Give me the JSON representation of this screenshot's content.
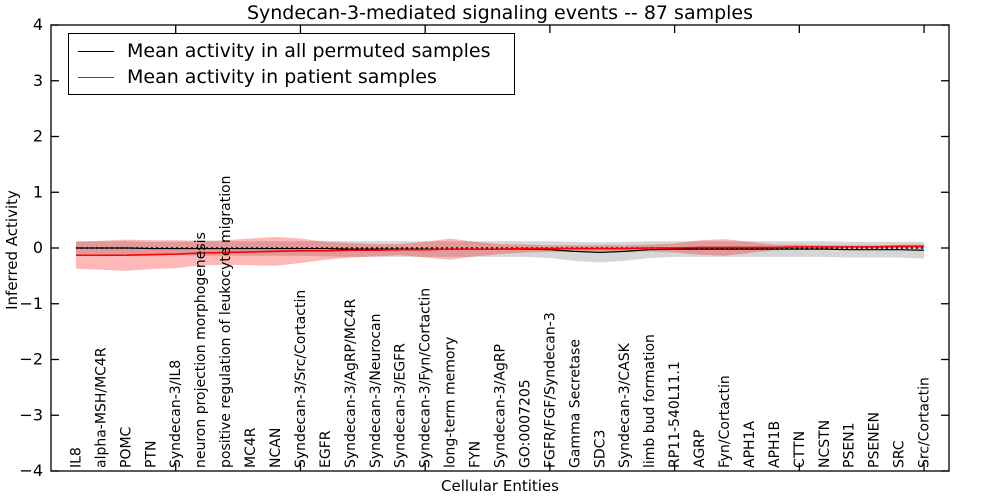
{
  "title": "Syndecan-3-mediated signaling events -- 87 samples",
  "legend": {
    "items": [
      {
        "label": "Mean activity in all permuted samples",
        "color": "#000000"
      },
      {
        "label": "Mean activity in patient samples",
        "color": "#ff0000"
      }
    ]
  },
  "chart_data": {
    "type": "line",
    "title": "Syndecan-3-mediated signaling events -- 87 samples",
    "xlabel": "Cellular Entities",
    "ylabel": "Inferred Activity",
    "ylim": [
      -4,
      4
    ],
    "yticks": [
      -4,
      -3,
      -2,
      -1,
      0,
      1,
      2,
      3,
      4
    ],
    "x_major_tick_step": 5,
    "grid": false,
    "legend_position": "upper left",
    "zero_line": true,
    "categories": [
      "IL8",
      "alpha-MSH/MC4R",
      "POMC",
      "PTN",
      "Syndecan-3/IL8",
      "neuron projection morphogenesis",
      "positive regulation of leukocyte migration",
      "MC4R",
      "NCAN",
      "Syndecan-3/Src/Cortactin",
      "EGFR",
      "Syndecan-3/AgRP/MC4R",
      "Syndecan-3/Neurocan",
      "Syndecan-3/EGFR",
      "Syndecan-3/Fyn/Cortactin",
      "long-term memory",
      "FYN",
      "Syndecan-3/AgRP",
      "GO:0007205",
      "FGFR/FGF/Syndecan-3",
      "Gamma Secretase",
      "SDC3",
      "Syndecan-3/CASK",
      "limb bud formation",
      "RP11-540L11.1",
      "AGRP",
      "Fyn/Cortactin",
      "APH1A",
      "APH1B",
      "CTTN",
      "NCSTN",
      "PSEN1",
      "PSENEN",
      "SRC",
      "Src/Cortactin"
    ],
    "series": [
      {
        "name": "Mean activity in all permuted samples",
        "color": "#000000",
        "line_width": 1.2,
        "values": [
          0.0,
          0.0,
          0.0,
          -0.01,
          -0.01,
          -0.01,
          -0.01,
          -0.01,
          -0.01,
          -0.01,
          -0.01,
          -0.02,
          -0.02,
          -0.02,
          -0.02,
          -0.02,
          -0.02,
          -0.02,
          -0.02,
          -0.03,
          -0.06,
          -0.08,
          -0.06,
          -0.03,
          -0.02,
          -0.02,
          -0.02,
          -0.02,
          -0.02,
          -0.02,
          -0.02,
          -0.03,
          -0.03,
          -0.03,
          -0.04
        ],
        "band": [
          0.12,
          0.12,
          0.12,
          0.12,
          0.12,
          0.13,
          0.13,
          0.13,
          0.13,
          0.13,
          0.14,
          0.14,
          0.14,
          0.14,
          0.14,
          0.14,
          0.14,
          0.14,
          0.14,
          0.15,
          0.17,
          0.18,
          0.17,
          0.15,
          0.14,
          0.14,
          0.14,
          0.14,
          0.14,
          0.14,
          0.14,
          0.14,
          0.14,
          0.14,
          0.15
        ],
        "band_color": "rgba(0,0,0,0.16)"
      },
      {
        "name": "Mean activity in patient samples",
        "color": "#ff0000",
        "line_width": 1.6,
        "values": [
          -0.13,
          -0.13,
          -0.13,
          -0.12,
          -0.11,
          -0.09,
          -0.08,
          -0.07,
          -0.06,
          -0.05,
          -0.05,
          -0.04,
          -0.04,
          -0.03,
          -0.03,
          -0.02,
          -0.02,
          -0.02,
          -0.01,
          -0.01,
          -0.01,
          -0.01,
          -0.01,
          0.0,
          0.0,
          0.01,
          0.01,
          0.01,
          0.01,
          0.02,
          0.02,
          0.02,
          0.02,
          0.03,
          0.03
        ],
        "band": [
          0.24,
          0.26,
          0.28,
          0.26,
          0.25,
          0.22,
          0.22,
          0.24,
          0.26,
          0.22,
          0.16,
          0.13,
          0.11,
          0.1,
          0.14,
          0.19,
          0.13,
          0.09,
          0.07,
          0.06,
          0.06,
          0.06,
          0.06,
          0.06,
          0.08,
          0.13,
          0.15,
          0.1,
          0.05,
          0.04,
          0.03,
          0.03,
          0.03,
          0.03,
          0.03
        ],
        "band_color": "rgba(255,0,0,0.28)"
      }
    ]
  }
}
